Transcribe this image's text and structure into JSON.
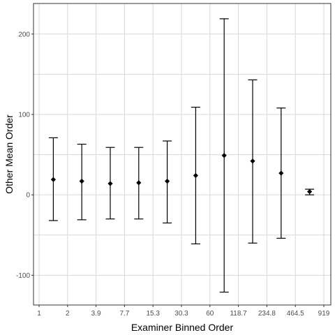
{
  "chart_data": {
    "type": "scatter",
    "title": "",
    "xlabel": "Examiner Binned Order",
    "ylabel": "Other Mean Order",
    "x_tick_labels": [
      "1",
      "2",
      "3.9",
      "7.7",
      "15.3",
      "30.3",
      "60",
      "118.7",
      "234.8",
      "464.5",
      "919"
    ],
    "y_ticks": [
      -100,
      0,
      100,
      200
    ],
    "ylim": [
      -137,
      238
    ],
    "grid": true,
    "legend": "none",
    "points": [
      {
        "x_bin": 1,
        "mean": 19,
        "low": -32,
        "high": 71
      },
      {
        "x_bin": 2,
        "mean": 17,
        "low": -31,
        "high": 63
      },
      {
        "x_bin": 3,
        "mean": 14,
        "low": -30,
        "high": 59
      },
      {
        "x_bin": 4,
        "mean": 15,
        "low": -30,
        "high": 59
      },
      {
        "x_bin": 5,
        "mean": 17,
        "low": -35,
        "high": 67
      },
      {
        "x_bin": 6,
        "mean": 24,
        "low": -61,
        "high": 109
      },
      {
        "x_bin": 7,
        "mean": 49,
        "low": -121,
        "high": 219
      },
      {
        "x_bin": 8,
        "mean": 42,
        "low": -60,
        "high": 143
      },
      {
        "x_bin": 9,
        "mean": 27,
        "low": -54,
        "high": 108
      },
      {
        "x_bin": 10,
        "mean": 4,
        "low": 0,
        "high": 7
      }
    ]
  }
}
